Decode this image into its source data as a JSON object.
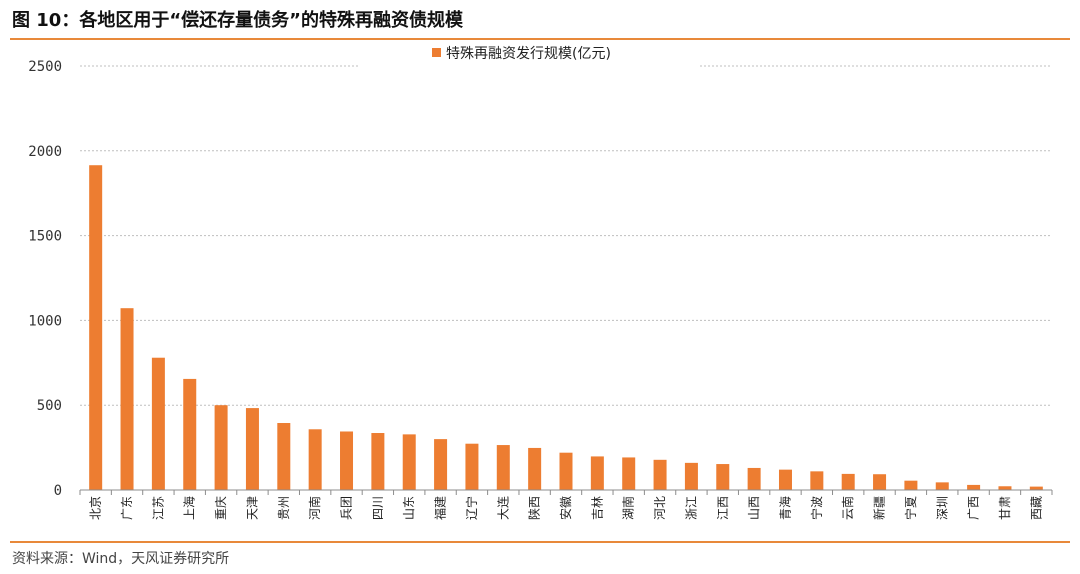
{
  "figure": {
    "title": "图 10：各地区用于“偿还存量债务”的特殊再融资债规模",
    "source": "资料来源：Wind，天风证券研究所"
  },
  "chart_data": {
    "type": "bar",
    "title": "",
    "xlabel": "",
    "ylabel": "",
    "ylim": [
      0,
      2500
    ],
    "yticks": [
      0,
      500,
      1000,
      1500,
      2000,
      2500
    ],
    "grid": "horizontal-dashed",
    "legend_position": "top-center",
    "bar_color": "#ED7D31",
    "series": [
      {
        "name": "特殊再融资发行规模(亿元)",
        "values": [
          1915,
          1072,
          780,
          655,
          500,
          483,
          395,
          358,
          345,
          336,
          328,
          300,
          273,
          265,
          248,
          220,
          198,
          192,
          178,
          160,
          153,
          130,
          120,
          110,
          95,
          93,
          55,
          45,
          30,
          22,
          20
        ]
      }
    ],
    "categories": [
      "北京",
      "广东",
      "江苏",
      "上海",
      "重庆",
      "天津",
      "贵州",
      "河南",
      "兵团",
      "四川",
      "山东",
      "福建",
      "辽宁",
      "大连",
      "陕西",
      "安徽",
      "吉林",
      "湖南",
      "河北",
      "浙江",
      "江西",
      "山西",
      "青海",
      "宁波",
      "云南",
      "新疆",
      "宁夏",
      "深圳",
      "广西",
      "甘肃",
      "西藏"
    ]
  }
}
